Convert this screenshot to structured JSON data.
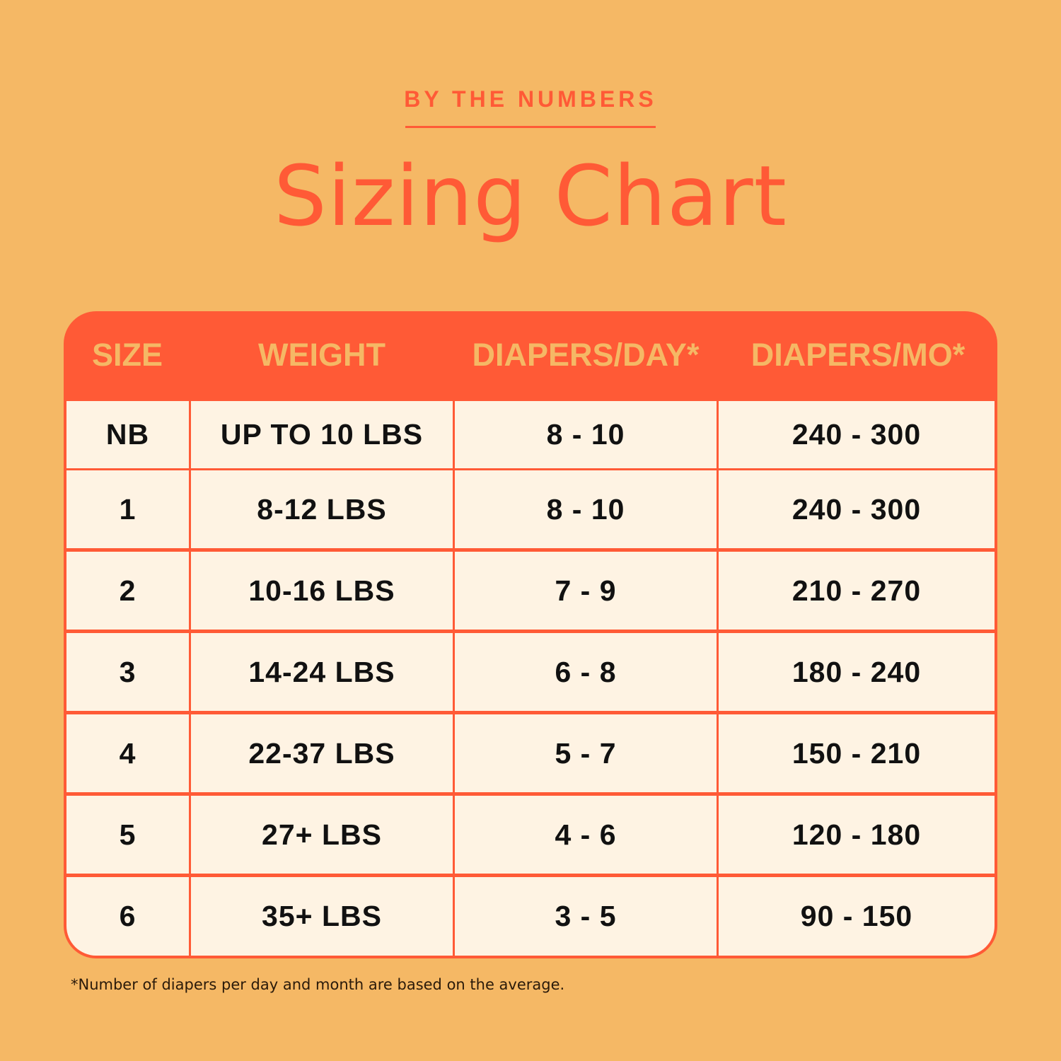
{
  "eyebrow": "BY THE NUMBERS",
  "title": "Sizing Chart",
  "colors": {
    "background": "#F5B865",
    "accent": "#FF5A36",
    "cell": "#FEF3E3"
  },
  "chart_data": {
    "type": "table",
    "columns": [
      "SIZE",
      "WEIGHT",
      "DIAPERS/DAY*",
      "DIAPERS/MO*"
    ],
    "rows": [
      [
        "NB",
        "UP TO 10 LBS",
        "8 - 10",
        "240 - 300"
      ],
      [
        "1",
        "8-12 LBS",
        "8 - 10",
        "240 - 300"
      ],
      [
        "2",
        "10-16 LBS",
        "7 - 9",
        "210 - 270"
      ],
      [
        "3",
        "14-24 LBS",
        "6 - 8",
        "180 - 240"
      ],
      [
        "4",
        "22-37 LBS",
        "5 - 7",
        "150 - 210"
      ],
      [
        "5",
        "27+ LBS",
        "4 - 6",
        "120 - 180"
      ],
      [
        "6",
        "35+ LBS",
        "3 - 5",
        "90 - 150"
      ]
    ]
  },
  "footnote": "*Number of diapers per day and month are based on the average."
}
